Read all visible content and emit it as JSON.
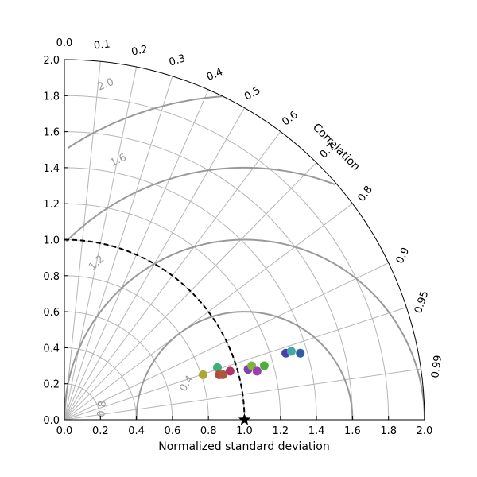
{
  "chart_data": {
    "type": "scatter",
    "subtype": "taylor-diagram",
    "xlabel": "Normalized standard deviation",
    "ylabel": "",
    "angular_axis_label": "Correlation",
    "std_range": [
      0.0,
      2.0
    ],
    "std_ticks": [
      "0.0",
      "0.2",
      "0.4",
      "0.6",
      "0.8",
      "1.0",
      "1.2",
      "1.4",
      "1.6",
      "1.8",
      "2.0"
    ],
    "correlation_ticks": [
      "0.0",
      "0.1",
      "0.2",
      "0.3",
      "0.4",
      "0.5",
      "0.6",
      "0.7",
      "0.8",
      "0.9",
      "0.95",
      "0.99"
    ],
    "grid": true,
    "reference": {
      "std": 1.0,
      "correlation": 1.0,
      "marker": "star"
    },
    "rms_contours": [
      {
        "value": 0.4,
        "label": "0.4"
      },
      {
        "value": 0.8,
        "label": "0.8"
      },
      {
        "value": 1.2,
        "label": "1.2"
      },
      {
        "value": 1.6,
        "label": "1.6"
      },
      {
        "value": 2.0,
        "label": "2.0"
      }
    ],
    "std_arcs": [
      0.6,
      1.0,
      1.4,
      1.8
    ],
    "points": [
      {
        "x": 0.77,
        "y": 0.25,
        "color": "#a9a832"
      },
      {
        "x": 0.85,
        "y": 0.29,
        "color": "#3fae79"
      },
      {
        "x": 0.86,
        "y": 0.25,
        "color": "#b5493c"
      },
      {
        "x": 0.88,
        "y": 0.25,
        "color": "#a9593c"
      },
      {
        "x": 0.92,
        "y": 0.27,
        "color": "#b0356c"
      },
      {
        "x": 1.02,
        "y": 0.28,
        "color": "#7b42b0"
      },
      {
        "x": 1.04,
        "y": 0.3,
        "color": "#7db43a"
      },
      {
        "x": 1.07,
        "y": 0.27,
        "color": "#9a3eb0"
      },
      {
        "x": 1.11,
        "y": 0.3,
        "color": "#4caf36"
      },
      {
        "x": 1.23,
        "y": 0.37,
        "color": "#4b3cb0"
      },
      {
        "x": 1.26,
        "y": 0.38,
        "color": "#3fa9a6"
      },
      {
        "x": 1.31,
        "y": 0.37,
        "color": "#2e5fa6"
      }
    ]
  },
  "colors": {
    "grid": "#b5b5b5",
    "contour": "#999999",
    "reference_arc": "#000000"
  }
}
